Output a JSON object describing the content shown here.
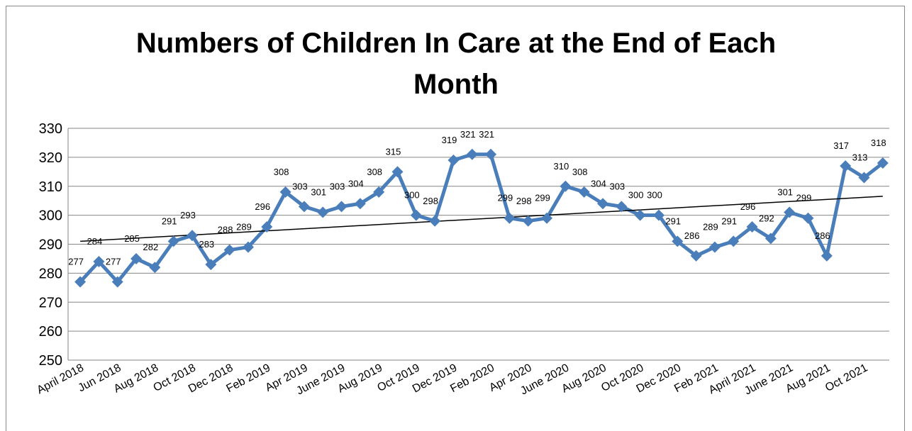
{
  "chart_data": {
    "type": "line",
    "title": "Numbers of Children In Care at the End of Each Month",
    "categories": [
      "April 2018",
      null,
      "Jun 2018",
      null,
      "Aug 2018",
      null,
      "Oct 2018",
      null,
      "Dec 2018",
      null,
      "Feb 2019",
      null,
      "Apr 2019",
      null,
      "June 2019",
      null,
      "Aug 2019",
      null,
      "Oct 2019",
      null,
      "Dec 2019",
      null,
      "Feb 2020",
      null,
      "Apr 2020",
      null,
      "June 2020",
      null,
      "Aug 2020",
      null,
      "Oct 2020",
      null,
      "Dec 2020",
      null,
      "Feb 2021",
      null,
      "April 2021",
      null,
      "June 2021",
      null,
      "Aug 2021",
      null,
      "Oct 2021",
      null
    ],
    "values": [
      277,
      284,
      277,
      285,
      282,
      291,
      293,
      283,
      288,
      289,
      296,
      308,
      303,
      301,
      303,
      304,
      308,
      315,
      300,
      298,
      319,
      321,
      321,
      299,
      298,
      299,
      310,
      308,
      304,
      303,
      300,
      300,
      291,
      286,
      289,
      291,
      296,
      292,
      301,
      299,
      286,
      317,
      313,
      318
    ],
    "color": "#4a7ebb",
    "ylim": [
      250,
      330
    ],
    "yticks": [
      250,
      260,
      270,
      280,
      290,
      300,
      310,
      320,
      330
    ],
    "grid": true,
    "trendline": true
  }
}
